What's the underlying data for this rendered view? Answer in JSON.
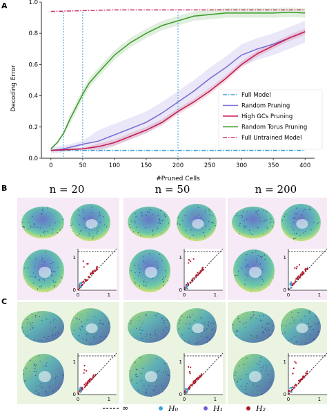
{
  "panels": {
    "A": "A",
    "B": "B",
    "C": "C"
  },
  "chart_data": {
    "type": "line",
    "title": "",
    "xlabel": "#Pruned Cells",
    "ylabel": "Decoding Error",
    "xlim": [
      -15,
      415
    ],
    "ylim": [
      0,
      1.0
    ],
    "xticks": [
      0,
      50,
      100,
      150,
      200,
      250,
      300,
      350,
      400
    ],
    "yticks": [
      0.0,
      0.2,
      0.4,
      0.6,
      0.8,
      1.0
    ],
    "ytick_labels": [
      "0.0",
      "0.2",
      "0.4",
      "0.6",
      "0.8",
      "1.0"
    ],
    "vlines": [
      20,
      50,
      200
    ],
    "legend_position": "center-right",
    "grid": false,
    "series": [
      {
        "name": "Full Model",
        "color": "#3a9fd8",
        "style": "dashdot",
        "x": [
          0,
          400
        ],
        "y": [
          0.05,
          0.05
        ]
      },
      {
        "name": "Random Pruning",
        "color": "#7b6fd6",
        "style": "solid",
        "band": 0.07,
        "x": [
          0,
          20,
          50,
          75,
          100,
          125,
          150,
          175,
          200,
          225,
          250,
          275,
          300,
          325,
          350,
          375,
          400
        ],
        "y": [
          0.05,
          0.06,
          0.09,
          0.11,
          0.15,
          0.19,
          0.23,
          0.29,
          0.36,
          0.43,
          0.51,
          0.58,
          0.66,
          0.7,
          0.73,
          0.77,
          0.81
        ]
      },
      {
        "name": "High GCs Pruning",
        "color": "#c41d4f",
        "style": "solid",
        "band": 0.02,
        "x": [
          0,
          25,
          50,
          75,
          100,
          125,
          150,
          175,
          200,
          225,
          250,
          275,
          300,
          325,
          350,
          375,
          400
        ],
        "y": [
          0.05,
          0.055,
          0.06,
          0.075,
          0.1,
          0.14,
          0.18,
          0.23,
          0.3,
          0.36,
          0.43,
          0.51,
          0.6,
          0.67,
          0.72,
          0.77,
          0.81
        ]
      },
      {
        "name": "Random Torus Pruning",
        "color": "#3f9e2f",
        "style": "solid",
        "band": 0.03,
        "x": [
          0,
          10,
          20,
          30,
          40,
          50,
          60,
          75,
          100,
          125,
          150,
          175,
          200,
          225,
          250,
          275,
          300,
          325,
          350,
          375,
          400
        ],
        "y": [
          0.06,
          0.1,
          0.16,
          0.25,
          0.33,
          0.41,
          0.48,
          0.55,
          0.66,
          0.74,
          0.8,
          0.85,
          0.88,
          0.91,
          0.92,
          0.93,
          0.93,
          0.93,
          0.93,
          0.935,
          0.93
        ]
      },
      {
        "name": "Full Untrained Model",
        "color": "#d4386a",
        "style": "dashdot",
        "x": [
          0,
          50,
          100,
          150,
          200,
          250,
          300,
          350,
          400
        ],
        "y": [
          0.94,
          0.945,
          0.95,
          0.95,
          0.95,
          0.95,
          0.95,
          0.95,
          0.95
        ]
      }
    ]
  },
  "column_titles": [
    "n = 20",
    "n = 50",
    "n = 200"
  ],
  "persistence_inset": {
    "tick_0": "0",
    "tick_1": "1",
    "infinity_label": "∞"
  },
  "bottom_legend": {
    "dashed_label": "∞",
    "h0_label": "H₀",
    "h1_label": "H₁",
    "h2_label": "H₂",
    "h0_color": "#3fa3dc",
    "h1_color": "#6a5fd2",
    "h2_color": "#b2182b"
  },
  "colors": {
    "row_B_bg": "#f5eaf6",
    "row_C_bg": "#eaf4e1"
  }
}
